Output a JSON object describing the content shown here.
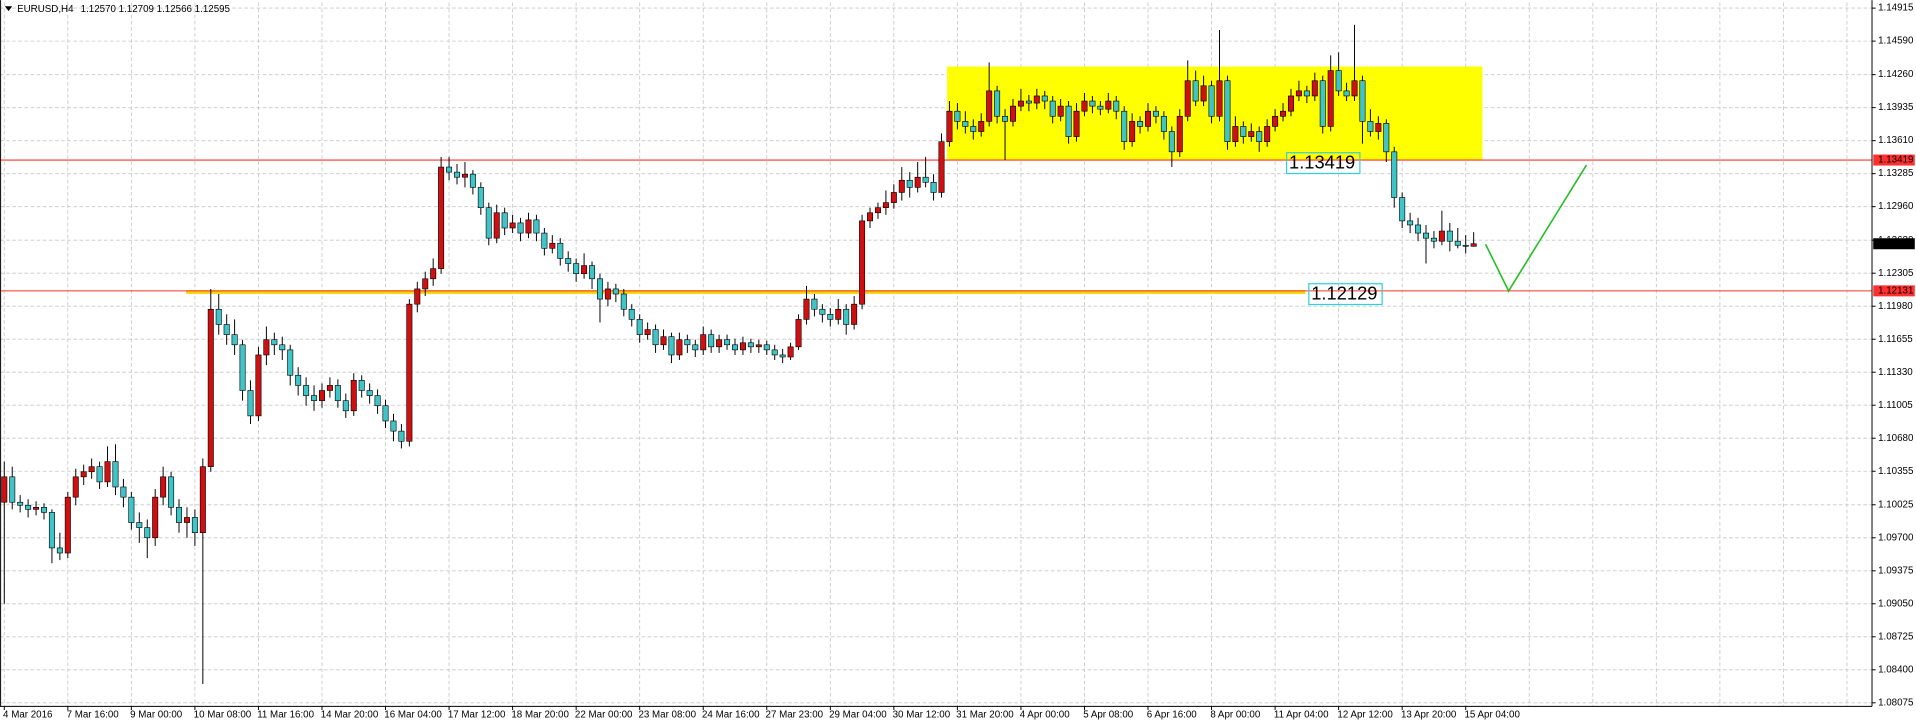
{
  "chart_data": {
    "type": "candlestick",
    "symbol": "EURUSD,H4",
    "quote": "1.12570 1.12709 1.12566 1.12595",
    "up_color": "#d01010",
    "down_color": "#3fc4c8",
    "wick_color": "#000000",
    "grid": true,
    "ylim": [
      1.0804,
      1.1497
    ],
    "yticks": [
      1.14915,
      {
        "value": 1.1459,
        "label": "1.14590"
      },
      {
        "value": 1.1426,
        "label": "1.14260"
      },
      1.13935,
      {
        "value": 1.1361,
        "label": "1.13610"
      },
      1.13285,
      {
        "value": 1.1296,
        "label": "1.12960"
      },
      {
        "value": 1.1263,
        "label": "1.12630"
      },
      1.12305,
      {
        "value": 1.1198,
        "label": "1.11980"
      },
      1.11655,
      {
        "value": 1.1133,
        "label": "1.11330"
      },
      1.11005,
      {
        "value": 1.1068,
        "label": "1.10680"
      },
      1.10355,
      1.10025,
      {
        "value": 1.097,
        "label": "1.09700"
      },
      1.09375,
      {
        "value": 1.0905,
        "label": "1.09050"
      },
      1.08725,
      {
        "value": 1.084,
        "label": "1.08400"
      },
      1.08075
    ],
    "categories": [
      "4 Mar 2016",
      null,
      null,
      null,
      null,
      null,
      null,
      null,
      "7 Mar 16:00",
      null,
      null,
      null,
      null,
      null,
      null,
      null,
      "9 Mar 00:00",
      null,
      null,
      null,
      null,
      null,
      null,
      null,
      "10 Mar 08:00",
      null,
      null,
      null,
      null,
      null,
      null,
      null,
      "11 Mar 16:00",
      null,
      null,
      null,
      null,
      null,
      null,
      null,
      "14 Mar 20:00",
      null,
      null,
      null,
      null,
      null,
      null,
      null,
      "16 Mar 04:00",
      null,
      null,
      null,
      null,
      null,
      null,
      null,
      "17 Mar 12:00",
      null,
      null,
      null,
      null,
      null,
      null,
      null,
      "18 Mar 20:00",
      null,
      null,
      null,
      null,
      null,
      null,
      null,
      "22 Mar 00:00",
      null,
      null,
      null,
      null,
      null,
      null,
      null,
      "23 Mar 08:00",
      null,
      null,
      null,
      null,
      null,
      null,
      null,
      "24 Mar 16:00",
      null,
      null,
      null,
      null,
      null,
      null,
      null,
      "27 Mar 23:00",
      null,
      null,
      null,
      null,
      null,
      null,
      null,
      "29 Mar 04:00",
      null,
      null,
      null,
      null,
      null,
      null,
      null,
      "30 Mar 12:00",
      null,
      null,
      null,
      null,
      null,
      null,
      null,
      "31 Mar 20:00",
      null,
      null,
      null,
      null,
      null,
      null,
      null,
      "4 Apr 00:00",
      null,
      null,
      null,
      null,
      null,
      null,
      null,
      "5 Apr 08:00",
      null,
      null,
      null,
      null,
      null,
      null,
      null,
      "6 Apr 16:00",
      null,
      null,
      null,
      null,
      null,
      null,
      null,
      "8 Apr 00:00",
      null,
      null,
      null,
      null,
      null,
      null,
      null,
      "11 Apr 04:00",
      null,
      null,
      null,
      null,
      null,
      null,
      null,
      "12 Apr 12:00",
      null,
      null,
      null,
      null,
      null,
      null,
      null,
      "13 Apr 20:00",
      null,
      null,
      null,
      null,
      null,
      null,
      null,
      "15 Apr 04:00",
      null
    ],
    "ohlc": [
      [
        1.1005,
        1.1045,
        1.0905,
        1.103
      ],
      [
        1.103,
        1.104,
        1.0998,
        1.1005
      ],
      [
        1.1005,
        1.1012,
        1.0995,
        1.1002
      ],
      [
        1.1002,
        1.1008,
        1.099,
        1.0998
      ],
      [
        1.0998,
        1.1006,
        1.0992,
        1.1
      ],
      [
        1.1,
        1.1004,
        1.0988,
        1.0995
      ],
      [
        1.0995,
        1.0998,
        1.0945,
        1.096
      ],
      [
        1.096,
        1.0975,
        1.0948,
        1.0955
      ],
      [
        1.0955,
        1.1015,
        1.095,
        1.101
      ],
      [
        1.101,
        1.1038,
        1.1002,
        1.103
      ],
      [
        1.103,
        1.1042,
        1.1022,
        1.1035
      ],
      [
        1.1035,
        1.1048,
        1.1028,
        1.104
      ],
      [
        1.104,
        1.1045,
        1.1018,
        1.1025
      ],
      [
        1.1025,
        1.106,
        1.102,
        1.1045
      ],
      [
        1.1045,
        1.1062,
        1.1012,
        1.102
      ],
      [
        1.102,
        1.1028,
        1.1,
        1.101
      ],
      [
        1.101,
        1.1015,
        1.0978,
        1.0985
      ],
      [
        1.0985,
        1.0995,
        1.0965,
        1.098
      ],
      [
        1.098,
        1.0988,
        1.095,
        1.097
      ],
      [
        1.097,
        1.1018,
        1.0962,
        1.101
      ],
      [
        1.101,
        1.104,
        1.1002,
        1.103
      ],
      [
        1.103,
        1.1035,
        1.0992,
        1.1
      ],
      [
        1.1,
        1.1008,
        1.0975,
        1.0985
      ],
      [
        1.0985,
        1.1,
        1.097,
        1.099
      ],
      [
        1.099,
        1.0998,
        1.0962,
        1.0975
      ],
      [
        1.0975,
        1.1048,
        1.0826,
        1.104
      ],
      [
        1.104,
        1.1215,
        1.1035,
        1.1195
      ],
      [
        1.1195,
        1.121,
        1.117,
        1.118
      ],
      [
        1.118,
        1.119,
        1.116,
        1.117
      ],
      [
        1.117,
        1.1185,
        1.115,
        1.116
      ],
      [
        1.116,
        1.1165,
        1.1105,
        1.1115
      ],
      [
        1.1115,
        1.1125,
        1.1082,
        1.109
      ],
      [
        1.109,
        1.1158,
        1.1085,
        1.115
      ],
      [
        1.115,
        1.1178,
        1.114,
        1.1165
      ],
      [
        1.1165,
        1.1172,
        1.115,
        1.116
      ],
      [
        1.116,
        1.1168,
        1.1145,
        1.1155
      ],
      [
        1.1155,
        1.116,
        1.112,
        1.113
      ],
      [
        1.113,
        1.1138,
        1.111,
        1.112
      ],
      [
        1.112,
        1.1128,
        1.11,
        1.111
      ],
      [
        1.111,
        1.112,
        1.1095,
        1.1105
      ],
      [
        1.1105,
        1.1122,
        1.1098,
        1.1115
      ],
      [
        1.1115,
        1.1128,
        1.1108,
        1.112
      ],
      [
        1.112,
        1.1126,
        1.1098,
        1.1105
      ],
      [
        1.1105,
        1.1112,
        1.1088,
        1.1095
      ],
      [
        1.1095,
        1.1132,
        1.109,
        1.1125
      ],
      [
        1.1125,
        1.113,
        1.1108,
        1.1115
      ],
      [
        1.1115,
        1.1122,
        1.1102,
        1.111
      ],
      [
        1.111,
        1.1116,
        1.1092,
        1.11
      ],
      [
        1.11,
        1.1106,
        1.1078,
        1.1085
      ],
      [
        1.1085,
        1.1092,
        1.1065,
        1.1075
      ],
      [
        1.1075,
        1.1082,
        1.1058,
        1.1065
      ],
      [
        1.1065,
        1.1205,
        1.106,
        1.12
      ],
      [
        1.12,
        1.1222,
        1.1192,
        1.1215
      ],
      [
        1.1215,
        1.1232,
        1.1208,
        1.1225
      ],
      [
        1.1225,
        1.1245,
        1.1218,
        1.1235
      ],
      [
        1.1235,
        1.1345,
        1.123,
        1.1335
      ],
      [
        1.1335,
        1.1345,
        1.1322,
        1.133
      ],
      [
        1.133,
        1.1338,
        1.1318,
        1.1325
      ],
      [
        1.1325,
        1.134,
        1.1315,
        1.1328
      ],
      [
        1.1328,
        1.1332,
        1.1308,
        1.1315
      ],
      [
        1.1315,
        1.132,
        1.1288,
        1.1295
      ],
      [
        1.1295,
        1.13,
        1.1258,
        1.1265
      ],
      [
        1.1265,
        1.1298,
        1.126,
        1.129
      ],
      [
        1.129,
        1.1295,
        1.1268,
        1.1275
      ],
      [
        1.1275,
        1.1288,
        1.127,
        1.128
      ],
      [
        1.128,
        1.1285,
        1.1262,
        1.127
      ],
      [
        1.127,
        1.129,
        1.1265,
        1.1283
      ],
      [
        1.1283,
        1.1288,
        1.1262,
        1.127
      ],
      [
        1.127,
        1.1275,
        1.1248,
        1.1255
      ],
      [
        1.1255,
        1.1268,
        1.125,
        1.126
      ],
      [
        1.126,
        1.1265,
        1.1238,
        1.1245
      ],
      [
        1.1245,
        1.1252,
        1.1232,
        1.124
      ],
      [
        1.124,
        1.1245,
        1.1222,
        1.123
      ],
      [
        1.123,
        1.125,
        1.1225,
        1.1238
      ],
      [
        1.1238,
        1.1242,
        1.1215,
        1.1225
      ],
      [
        1.1225,
        1.123,
        1.1182,
        1.1205
      ],
      [
        1.1205,
        1.1222,
        1.1198,
        1.1215
      ],
      [
        1.1215,
        1.122,
        1.1202,
        1.121
      ],
      [
        1.121,
        1.1215,
        1.1188,
        1.1195
      ],
      [
        1.1195,
        1.12,
        1.1178,
        1.1185
      ],
      [
        1.1185,
        1.119,
        1.1162,
        1.117
      ],
      [
        1.117,
        1.1182,
        1.1165,
        1.1175
      ],
      [
        1.1175,
        1.118,
        1.1152,
        1.116
      ],
      [
        1.116,
        1.1175,
        1.1155,
        1.1168
      ],
      [
        1.1168,
        1.1172,
        1.1142,
        1.115
      ],
      [
        1.115,
        1.1172,
        1.1145,
        1.1165
      ],
      [
        1.1165,
        1.117,
        1.1152,
        1.116
      ],
      [
        1.116,
        1.1165,
        1.1148,
        1.1155
      ],
      [
        1.1155,
        1.1178,
        1.115,
        1.117
      ],
      [
        1.117,
        1.1175,
        1.1152,
        1.1158
      ],
      [
        1.1158,
        1.117,
        1.1152,
        1.1165
      ],
      [
        1.1165,
        1.117,
        1.1155,
        1.116
      ],
      [
        1.116,
        1.1166,
        1.115,
        1.1155
      ],
      [
        1.1155,
        1.1168,
        1.115,
        1.1162
      ],
      [
        1.1162,
        1.1166,
        1.1152,
        1.1158
      ],
      [
        1.1158,
        1.1165,
        1.1152,
        1.116
      ],
      [
        1.116,
        1.1164,
        1.115,
        1.1155
      ],
      [
        1.1155,
        1.116,
        1.1145,
        1.115
      ],
      [
        1.115,
        1.1156,
        1.1142,
        1.1148
      ],
      [
        1.1148,
        1.1162,
        1.1145,
        1.1158
      ],
      [
        1.1158,
        1.119,
        1.1155,
        1.1185
      ],
      [
        1.1185,
        1.1218,
        1.118,
        1.1205
      ],
      [
        1.1205,
        1.121,
        1.1188,
        1.1195
      ],
      [
        1.1195,
        1.12,
        1.1182,
        1.119
      ],
      [
        1.119,
        1.1196,
        1.1178,
        1.1185
      ],
      [
        1.1185,
        1.1205,
        1.118,
        1.1195
      ],
      [
        1.1195,
        1.12,
        1.117,
        1.118
      ],
      [
        1.118,
        1.1208,
        1.1175,
        1.12
      ],
      [
        1.12,
        1.1288,
        1.1195,
        1.1282
      ],
      [
        1.1282,
        1.1295,
        1.1275,
        1.129
      ],
      [
        1.129,
        1.13,
        1.1284,
        1.1295
      ],
      [
        1.1295,
        1.1312,
        1.1288,
        1.13
      ],
      [
        1.13,
        1.1318,
        1.1294,
        1.131
      ],
      [
        1.131,
        1.1335,
        1.1302,
        1.1322
      ],
      [
        1.1322,
        1.133,
        1.1305,
        1.1315
      ],
      [
        1.1315,
        1.134,
        1.131,
        1.1325
      ],
      [
        1.1325,
        1.1345,
        1.1315,
        1.132
      ],
      [
        1.132,
        1.1328,
        1.1302,
        1.131
      ],
      [
        1.131,
        1.1368,
        1.1305,
        1.136
      ],
      [
        1.136,
        1.14,
        1.1355,
        1.139
      ],
      [
        1.139,
        1.1398,
        1.1372,
        1.138
      ],
      [
        1.138,
        1.139,
        1.1368,
        1.1375
      ],
      [
        1.1375,
        1.1382,
        1.1362,
        1.137
      ],
      [
        1.137,
        1.1388,
        1.1365,
        1.138
      ],
      [
        1.138,
        1.1438,
        1.1375,
        1.141
      ],
      [
        1.141,
        1.1415,
        1.1378,
        1.1385
      ],
      [
        1.1385,
        1.1392,
        1.1342,
        1.138
      ],
      [
        1.138,
        1.1402,
        1.1375,
        1.1395
      ],
      [
        1.1395,
        1.1412,
        1.139,
        1.14
      ],
      [
        1.14,
        1.1406,
        1.139,
        1.1398
      ],
      [
        1.1398,
        1.1412,
        1.1392,
        1.1405
      ],
      [
        1.1405,
        1.141,
        1.1392,
        1.14
      ],
      [
        1.14,
        1.1405,
        1.1378,
        1.1385
      ],
      [
        1.1385,
        1.1402,
        1.138,
        1.1395
      ],
      [
        1.1395,
        1.14,
        1.1358,
        1.1365
      ],
      [
        1.1365,
        1.1398,
        1.136,
        1.139
      ],
      [
        1.139,
        1.1408,
        1.1385,
        1.14
      ],
      [
        1.14,
        1.1405,
        1.1388,
        1.1395
      ],
      [
        1.1395,
        1.14,
        1.1386,
        1.1392
      ],
      [
        1.1392,
        1.1408,
        1.1388,
        1.14
      ],
      [
        1.14,
        1.1405,
        1.1382,
        1.139
      ],
      [
        1.139,
        1.1395,
        1.1352,
        1.136
      ],
      [
        1.136,
        1.1388,
        1.1355,
        1.138
      ],
      [
        1.138,
        1.1385,
        1.1368,
        1.1375
      ],
      [
        1.1375,
        1.1398,
        1.137,
        1.139
      ],
      [
        1.139,
        1.1395,
        1.1378,
        1.1385
      ],
      [
        1.1385,
        1.139,
        1.1362,
        1.137
      ],
      [
        1.137,
        1.1375,
        1.1335,
        1.135
      ],
      [
        1.135,
        1.1392,
        1.1345,
        1.1385
      ],
      [
        1.1385,
        1.144,
        1.138,
        1.142
      ],
      [
        1.142,
        1.143,
        1.1395,
        1.14
      ],
      [
        1.14,
        1.1425,
        1.1395,
        1.1415
      ],
      [
        1.1415,
        1.142,
        1.1378,
        1.1385
      ],
      [
        1.1385,
        1.147,
        1.138,
        1.142
      ],
      [
        1.142,
        1.1425,
        1.1352,
        1.136
      ],
      [
        1.136,
        1.1385,
        1.1355,
        1.1375
      ],
      [
        1.1375,
        1.138,
        1.1358,
        1.1365
      ],
      [
        1.1365,
        1.1378,
        1.136,
        1.137
      ],
      [
        1.137,
        1.1375,
        1.135,
        1.136
      ],
      [
        1.136,
        1.1382,
        1.1355,
        1.1375
      ],
      [
        1.1375,
        1.1392,
        1.137,
        1.1385
      ],
      [
        1.1385,
        1.1398,
        1.138,
        1.139
      ],
      [
        1.139,
        1.1412,
        1.1385,
        1.1405
      ],
      [
        1.1405,
        1.142,
        1.14,
        1.141
      ],
      [
        1.141,
        1.1415,
        1.1398,
        1.1405
      ],
      [
        1.1405,
        1.1428,
        1.14,
        1.142
      ],
      [
        1.142,
        1.1425,
        1.1368,
        1.1375
      ],
      [
        1.1375,
        1.1445,
        1.137,
        1.143
      ],
      [
        1.143,
        1.1448,
        1.1405,
        1.141
      ],
      [
        1.141,
        1.1418,
        1.14,
        1.1405
      ],
      [
        1.1405,
        1.1475,
        1.14,
        1.142
      ],
      [
        1.142,
        1.1425,
        1.1358,
        1.138
      ],
      [
        1.138,
        1.1392,
        1.1365,
        1.137
      ],
      [
        1.137,
        1.1385,
        1.1362,
        1.1378
      ],
      [
        1.1378,
        1.1382,
        1.134,
        1.135
      ],
      [
        1.135,
        1.1355,
        1.1295,
        1.1305
      ],
      [
        1.1305,
        1.131,
        1.1275,
        1.1282
      ],
      [
        1.1282,
        1.129,
        1.127,
        1.1278
      ],
      [
        1.1278,
        1.1285,
        1.1262,
        1.127
      ],
      [
        1.127,
        1.1278,
        1.124,
        1.1265
      ],
      [
        1.1265,
        1.1272,
        1.1255,
        1.1262
      ],
      [
        1.1262,
        1.1292,
        1.1258,
        1.1272
      ],
      [
        1.1272,
        1.128,
        1.1252,
        1.1262
      ],
      [
        1.1262,
        1.1275,
        1.1255,
        1.1258
      ],
      [
        1.1258,
        1.1268,
        1.125,
        1.1257
      ],
      [
        1.1257,
        1.12709,
        1.12566,
        1.12595
      ]
    ],
    "hlines": [
      {
        "value": 1.13419,
        "color": "#ff3030"
      },
      {
        "value": 1.12131,
        "color": "#ff3030"
      }
    ],
    "zone": {
      "from": 118.7,
      "to": 186.1,
      "top": 1.1434,
      "bottom": 1.13419,
      "color": "#ffff00"
    },
    "band_line": {
      "from": 22.9,
      "to": 163.8,
      "value": 1.1212,
      "color": "#f2d400"
    },
    "price_labels": [
      {
        "value": 1.13419,
        "at": 161.6,
        "color": "#30d0e0"
      },
      {
        "value": 1.12129,
        "at": 164.4,
        "color": "#30d0e0"
      }
    ],
    "trendline": {
      "color": "#22c022",
      "at": [
        186.5,
        189.4,
        199.2
      ],
      "values": [
        1.1259,
        1.1213,
        1.1337
      ]
    }
  }
}
